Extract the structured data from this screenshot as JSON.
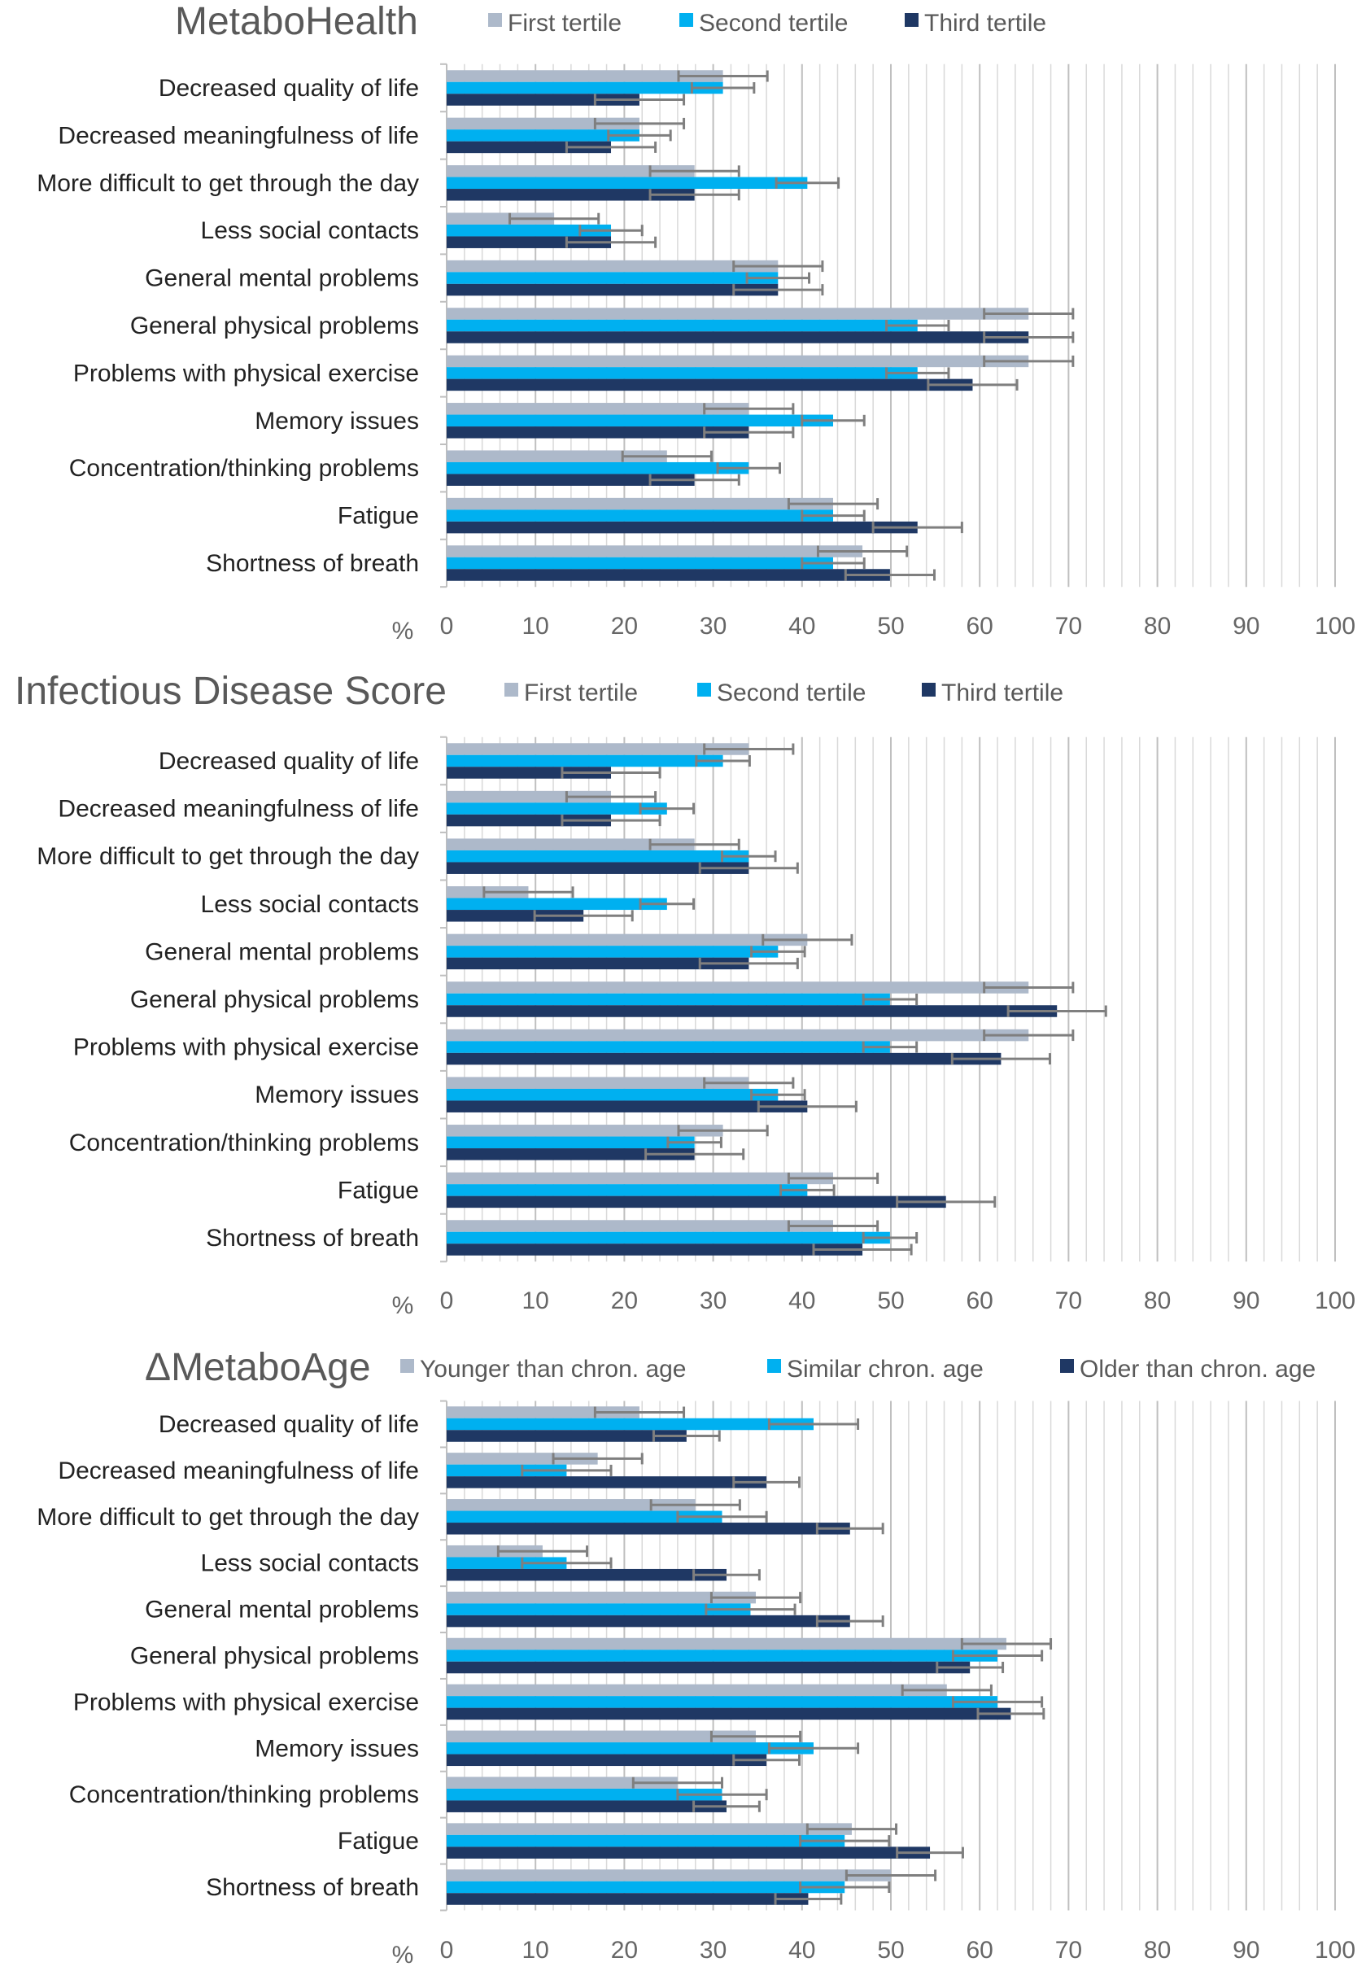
{
  "colors": {
    "s1": "#ADB9CA",
    "s2": "#00B0F0",
    "s3": "#1F3864",
    "error": "#7F7F7F",
    "grid": "#D9D9D9"
  },
  "chart_data": [
    {
      "type": "bar",
      "orientation": "horizontal",
      "title": "MetaboHealth",
      "xlabel": "%",
      "xlim": [
        0,
        100
      ],
      "xticks": [
        "0",
        "10",
        "20",
        "30",
        "40",
        "50",
        "60",
        "70",
        "80",
        "90",
        "100"
      ],
      "grid": true,
      "legend_position": "top",
      "categories": [
        "Decreased quality of life",
        "Decreased meaningfulness of life",
        "More difficult to get through the day",
        "Less social contacts",
        "General mental problems",
        "General physical problems",
        "Problems with physical exercise",
        "Memory issues",
        "Concentration/thinking problems",
        "Fatigue",
        "Shortness of breath"
      ],
      "series": [
        {
          "name": "First tertile",
          "values": [
            31.1,
            21.7,
            27.9,
            12.1,
            37.3,
            65.5,
            65.5,
            34.0,
            24.8,
            43.5,
            46.8
          ],
          "error": 5
        },
        {
          "name": "Second tertile",
          "values": [
            31.1,
            21.7,
            40.6,
            18.5,
            37.3,
            53.0,
            53.0,
            43.5,
            34.0,
            43.5,
            43.5
          ],
          "error": 3.5
        },
        {
          "name": "Third tertile",
          "values": [
            21.7,
            18.5,
            27.9,
            18.5,
            37.3,
            65.5,
            59.2,
            34.0,
            27.9,
            53.0,
            49.9
          ],
          "error": 5
        }
      ]
    },
    {
      "type": "bar",
      "orientation": "horizontal",
      "title": "Infectious Disease Score",
      "xlabel": "%",
      "xlim": [
        0,
        100
      ],
      "xticks": [
        "0",
        "10",
        "20",
        "30",
        "40",
        "50",
        "60",
        "70",
        "80",
        "90",
        "100"
      ],
      "grid": true,
      "legend_position": "top",
      "categories": [
        "Decreased quality of life",
        "Decreased meaningfulness of life",
        "More difficult to get through the day",
        "Less social contacts",
        "General mental problems",
        "General physical problems",
        "Problems with physical exercise",
        "Memory issues",
        "Concentration/thinking problems",
        "Fatigue",
        "Shortness of breath"
      ],
      "series": [
        {
          "name": "First tertile",
          "values": [
            34.0,
            18.5,
            27.9,
            9.2,
            40.6,
            65.5,
            65.5,
            34.0,
            31.1,
            43.5,
            43.5
          ],
          "error": 5
        },
        {
          "name": "Second tertile",
          "values": [
            31.1,
            24.8,
            34.0,
            24.8,
            37.3,
            49.9,
            49.9,
            37.3,
            27.9,
            40.6,
            49.9
          ],
          "error": 3
        },
        {
          "name": "Third tertile",
          "values": [
            18.5,
            18.5,
            34.0,
            15.4,
            34.0,
            68.7,
            62.4,
            40.6,
            27.9,
            56.2,
            46.8
          ],
          "error": 5.5
        }
      ]
    },
    {
      "type": "bar",
      "orientation": "horizontal",
      "title": "ΔMetaboAge",
      "xlabel": "%",
      "xlim": [
        0,
        100
      ],
      "xticks": [
        "0",
        "10",
        "20",
        "30",
        "40",
        "50",
        "60",
        "70",
        "80",
        "90",
        "100"
      ],
      "grid": true,
      "legend_position": "top",
      "categories": [
        "Decreased quality of life",
        "Decreased meaningfulness of life",
        "More difficult to get through the day",
        "Less social contacts",
        "General mental problems",
        "General physical problems",
        "Problems with physical exercise",
        "Memory issues",
        "Concentration/thinking problems",
        "Fatigue",
        "Shortness of breath"
      ],
      "series": [
        {
          "name": "Younger than chron. age",
          "values": [
            21.7,
            17.0,
            28.0,
            10.8,
            34.8,
            63.0,
            56.3,
            34.8,
            26.0,
            45.6,
            50.0
          ],
          "error": 5
        },
        {
          "name": "Similar chron. age",
          "values": [
            41.3,
            13.5,
            31.0,
            13.5,
            34.2,
            62.0,
            62.0,
            41.3,
            31.0,
            44.8,
            44.8
          ],
          "error": 5
        },
        {
          "name": "Older than chron. age",
          "values": [
            27.0,
            36.0,
            45.4,
            31.5,
            45.4,
            58.9,
            63.5,
            36.0,
            31.5,
            54.4,
            40.7
          ],
          "error": 3.7
        }
      ]
    }
  ]
}
